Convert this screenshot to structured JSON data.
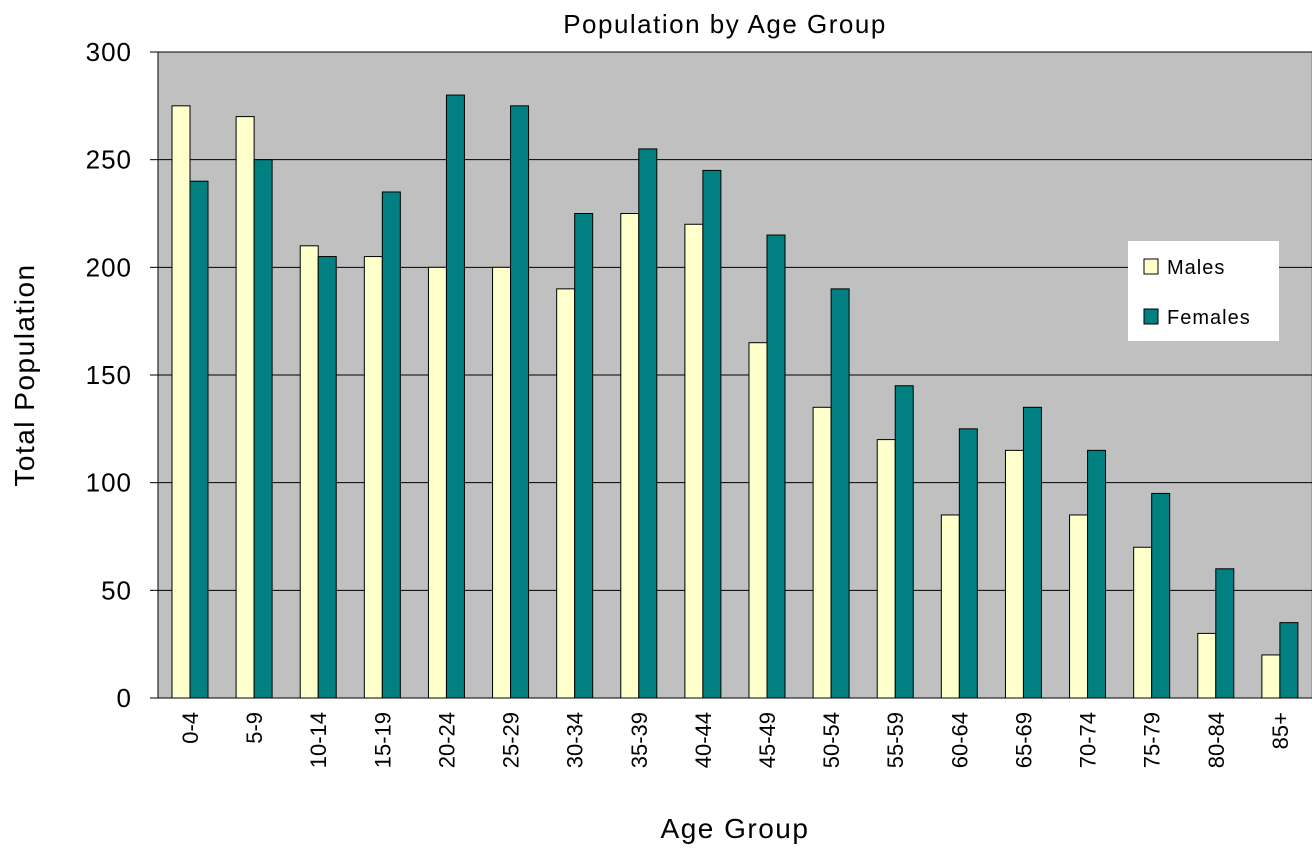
{
  "chart_data": {
    "type": "bar",
    "title": "Population by Age Group",
    "xlabel": "Age Group",
    "ylabel": "Total Population",
    "ylim": [
      0,
      300
    ],
    "yticks": [
      0,
      50,
      100,
      150,
      200,
      250,
      300
    ],
    "grid": true,
    "legend_position": "right",
    "categories": [
      "0-4",
      "5-9",
      "10-14",
      "15-19",
      "20-24",
      "25-29",
      "30-34",
      "35-39",
      "40-44",
      "45-49",
      "50-54",
      "55-59",
      "60-64",
      "65-69",
      "70-74",
      "75-79",
      "80-84",
      "85+"
    ],
    "series": [
      {
        "name": "Males",
        "color": "#ffffcc",
        "values": [
          275,
          270,
          210,
          205,
          200,
          200,
          190,
          225,
          220,
          165,
          135,
          120,
          85,
          115,
          85,
          70,
          30,
          20
        ]
      },
      {
        "name": "Females",
        "color": "#008080",
        "values": [
          240,
          250,
          205,
          235,
          280,
          275,
          225,
          255,
          245,
          215,
          190,
          145,
          125,
          135,
          115,
          95,
          60,
          35
        ]
      }
    ]
  }
}
